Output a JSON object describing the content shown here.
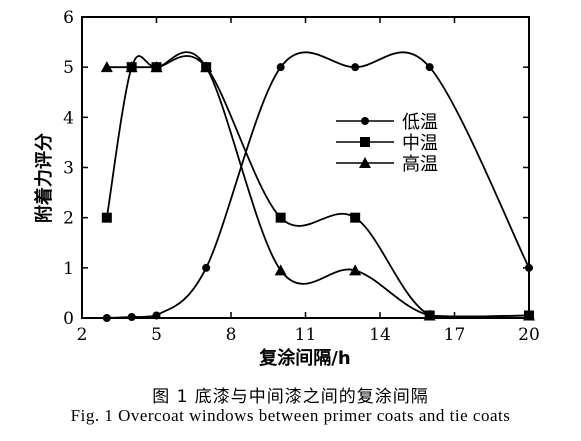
{
  "chart_data": {
    "type": "line",
    "xlabel": "复涂间隔/h",
    "ylabel": "附着力评分",
    "xlim": [
      2,
      20
    ],
    "ylim": [
      0,
      6
    ],
    "xticks": [
      2,
      5,
      8,
      11,
      14,
      17,
      20
    ],
    "yticks": [
      0,
      1,
      2,
      3,
      4,
      5,
      6
    ],
    "legend_position": "center-right",
    "series": [
      {
        "name": "低温",
        "marker": "circle",
        "x": [
          3,
          4,
          5,
          7,
          10,
          13,
          16,
          20
        ],
        "y": [
          0,
          0.02,
          0.05,
          1,
          5,
          5,
          5,
          1
        ]
      },
      {
        "name": "中温",
        "marker": "square",
        "x": [
          3,
          4,
          5,
          7,
          10,
          13,
          16,
          20
        ],
        "y": [
          2,
          5,
          5,
          5,
          2,
          2,
          0.05,
          0.05
        ]
      },
      {
        "name": "高温",
        "marker": "triangle",
        "x": [
          3,
          4,
          5,
          7,
          10,
          13,
          16,
          20
        ],
        "y": [
          5,
          5,
          5,
          5,
          0.95,
          0.95,
          0.05,
          0.05
        ]
      }
    ]
  },
  "caption_zh": "图 1   底漆与中间漆之间的复涂间隔",
  "caption_en": "Fig. 1   Overcoat windows between primer coats and tie coats"
}
